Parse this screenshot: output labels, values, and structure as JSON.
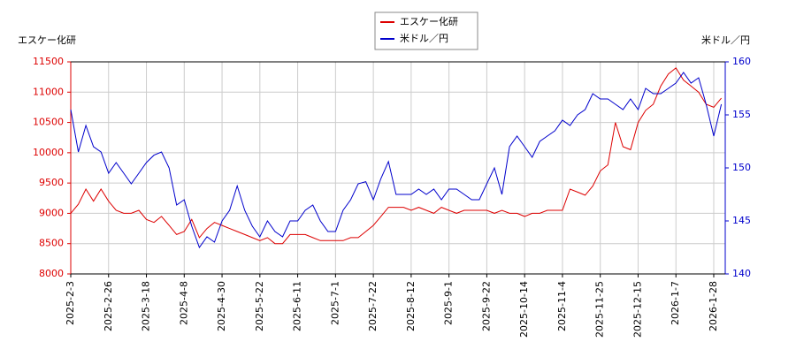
{
  "chart_data": {
    "type": "line",
    "legend_position": "top",
    "y_label": "エスケー化研",
    "y2_label": "米ドル／円",
    "grid": true,
    "categories": [
      "2025-2-3",
      null,
      null,
      null,
      null,
      "2025-2-26",
      null,
      null,
      null,
      null,
      "2025-3-18",
      null,
      null,
      null,
      null,
      "2025-4-8",
      null,
      null,
      null,
      null,
      "2025-4-30",
      null,
      null,
      null,
      null,
      "2025-5-22",
      null,
      null,
      null,
      null,
      "2025-6-11",
      null,
      null,
      null,
      null,
      "2025-7-1",
      null,
      null,
      null,
      null,
      "2025-7-22",
      null,
      null,
      null,
      null,
      "2025-8-12",
      null,
      null,
      null,
      null,
      "2025-9-1",
      null,
      null,
      null,
      null,
      "2025-9-22",
      null,
      null,
      null,
      null,
      "2025-10-14",
      null,
      null,
      null,
      null,
      "2025-11-4",
      null,
      null,
      null,
      null,
      "2025-11-25",
      null,
      null,
      null,
      null,
      "2025-12-15",
      null,
      null,
      null,
      null,
      "2026-1-7",
      null,
      null,
      null,
      null,
      "2026-1-28",
      null
    ],
    "ylim": [
      8000,
      11500
    ],
    "yticks": [
      8000,
      8500,
      9000,
      9500,
      10000,
      10500,
      11000,
      11500
    ],
    "y2lim": [
      140,
      160
    ],
    "y2ticks": [
      140,
      145,
      150,
      155,
      160
    ],
    "series": [
      {
        "name": "エスケー化研",
        "color": "#dd0000",
        "values": [
          9000,
          9150,
          9400,
          9200,
          9400,
          9200,
          9050,
          9000,
          9000,
          9050,
          8900,
          8850,
          8950,
          8800,
          8650,
          8700,
          8900,
          8600,
          8750,
          8850,
          8800,
          8750,
          8700,
          8650,
          8600,
          8550,
          8600,
          8500,
          8500,
          8650,
          8650,
          8650,
          8600,
          8550,
          8550,
          8550,
          8550,
          8600,
          8600,
          8700,
          8800,
          8950,
          9100,
          9100,
          9100,
          9050,
          9100,
          9050,
          9000,
          9100,
          9050,
          9000,
          9050,
          9050,
          9050,
          9050,
          9000,
          9050,
          9000,
          9000,
          8950,
          9000,
          9000,
          9050,
          9050,
          9050,
          9400,
          9350,
          9300,
          9450,
          9700,
          9800,
          10500,
          10100,
          10050,
          10500,
          10700,
          10800,
          11100,
          11300,
          11400,
          11200,
          11100,
          11000,
          10800,
          10750,
          10900
        ]
      },
      {
        "name": "米ドル／円",
        "color": "#0000cc",
        "axis": "y2",
        "values": [
          155.5,
          151.5,
          154,
          152,
          151.5,
          149.5,
          150.5,
          149.5,
          148.5,
          149.5,
          150.5,
          151.2,
          151.5,
          150,
          146.5,
          147,
          144.5,
          142.5,
          143.5,
          143,
          145,
          146,
          148.3,
          146,
          144.5,
          143.5,
          145,
          144,
          143.5,
          145,
          145,
          146,
          146.5,
          145,
          144,
          144,
          146,
          147,
          148.5,
          148.7,
          147,
          149,
          150.6,
          147.5,
          147.5,
          147.5,
          148,
          147.5,
          148,
          147,
          148,
          148,
          147.5,
          147,
          147,
          148.5,
          150,
          147.5,
          152,
          153,
          152,
          151,
          152.5,
          153,
          153.5,
          154.5,
          154,
          155,
          155.5,
          157,
          156.5,
          156.5,
          156,
          155.5,
          156.5,
          155.5,
          157.5,
          157,
          157,
          157.5,
          158,
          159,
          158,
          158.5,
          156,
          153,
          156
        ]
      }
    ]
  }
}
